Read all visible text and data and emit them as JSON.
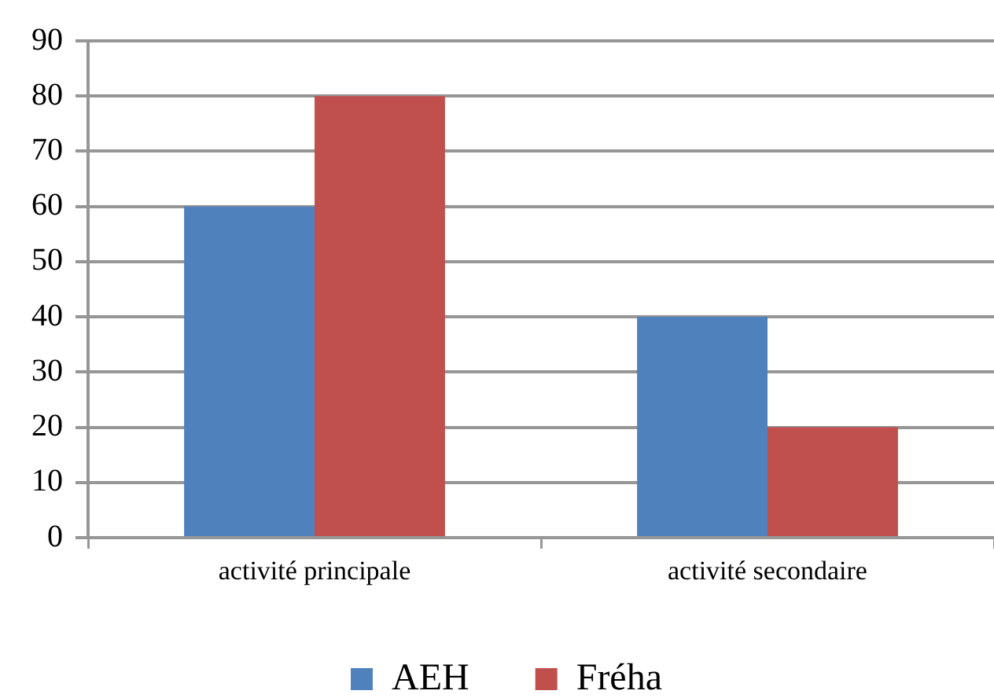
{
  "chart_data": {
    "type": "bar",
    "categories": [
      "activité principale",
      "activité secondaire"
    ],
    "series": [
      {
        "name": "AEH",
        "color": "#4f81bd",
        "values": [
          60,
          40
        ]
      },
      {
        "name": "Fréha",
        "color": "#c0504d",
        "values": [
          80,
          20
        ]
      }
    ],
    "ylim": [
      0,
      90
    ],
    "yticks": [
      0,
      10,
      20,
      30,
      40,
      50,
      60,
      70,
      80,
      90
    ],
    "grid": "y",
    "legend": "bottom"
  }
}
